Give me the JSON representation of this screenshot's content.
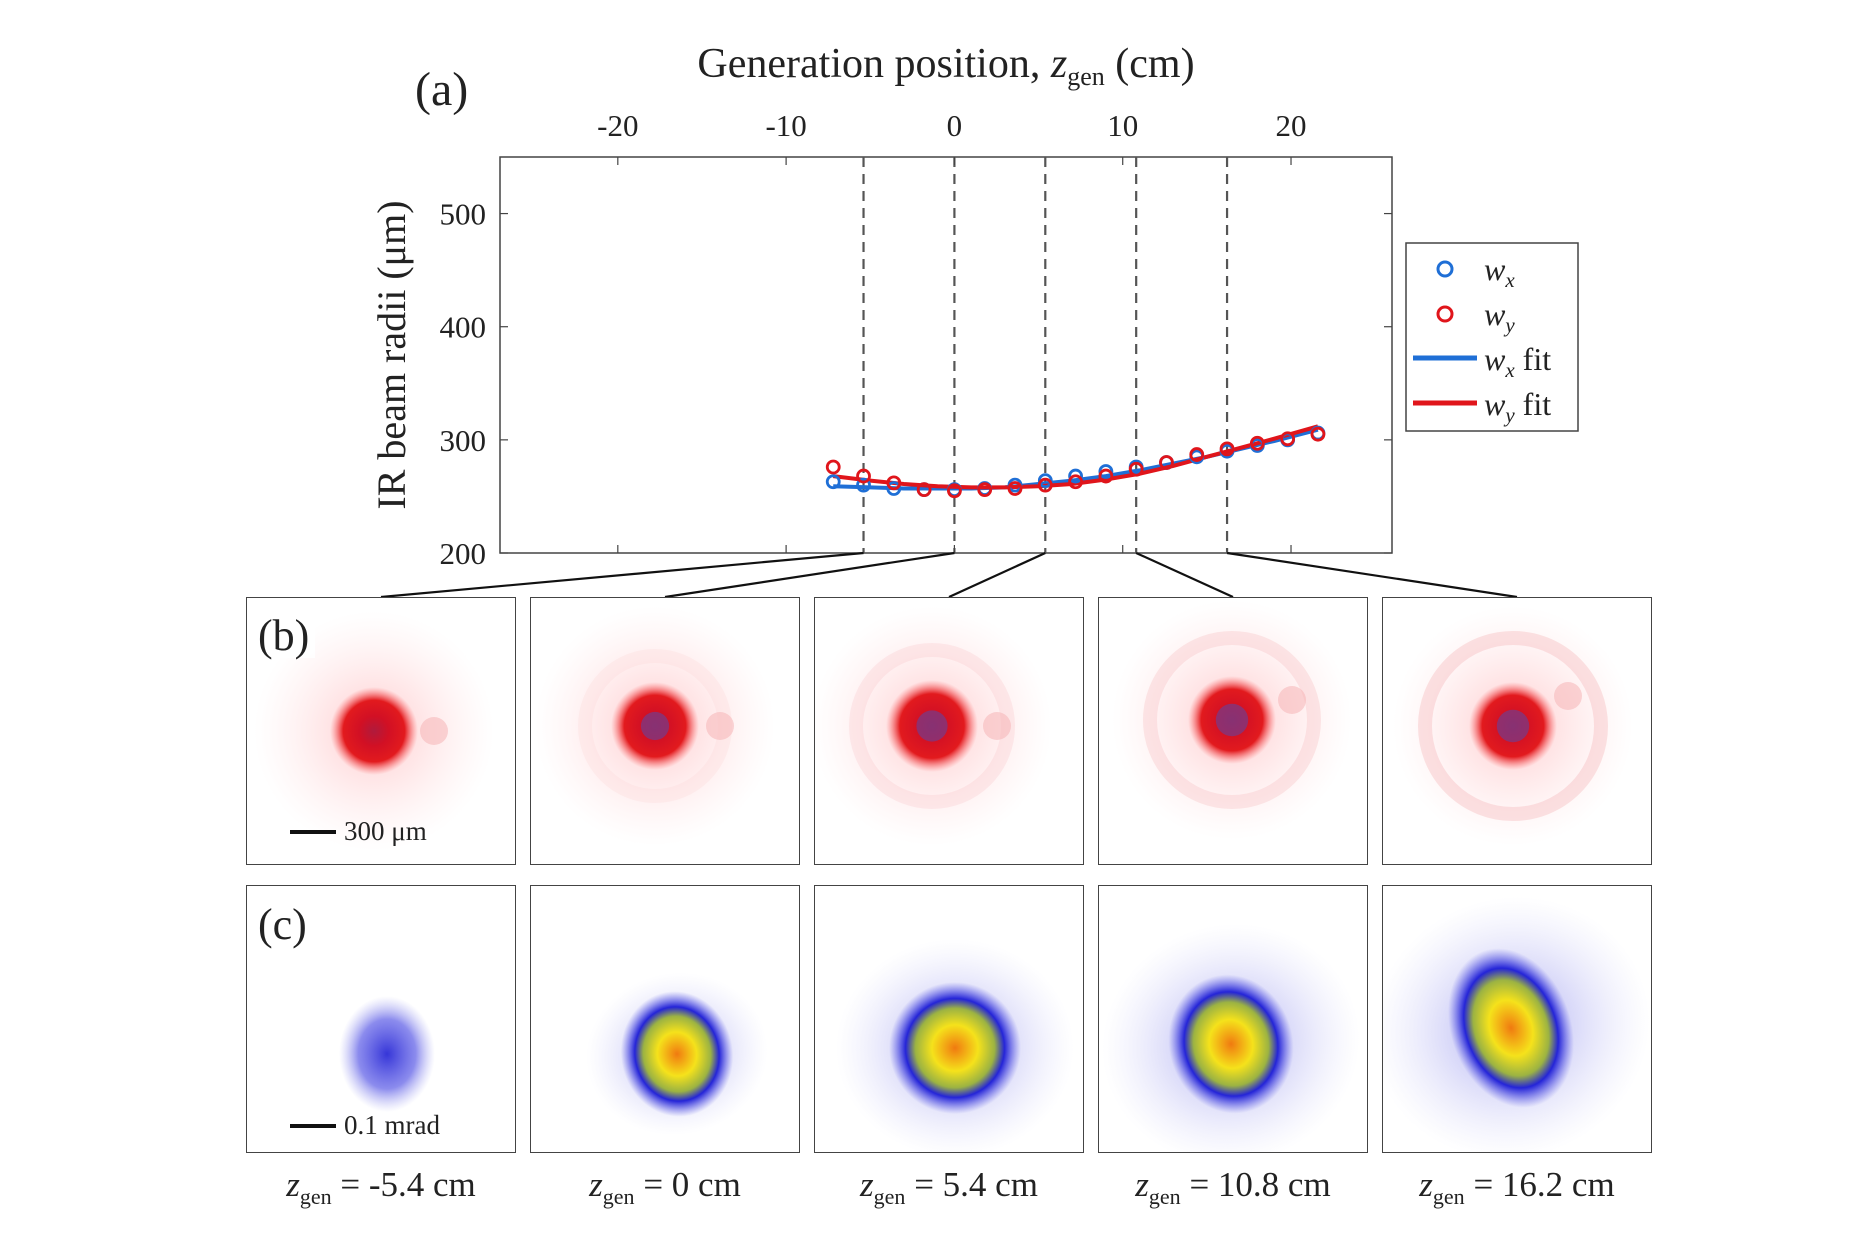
{
  "figure": {
    "panel_a_label": "(a)",
    "panel_b_label": "(b)",
    "panel_c_label": "(c)",
    "top_axis_title_prefix": "Generation position, ",
    "top_axis_title_var": "z",
    "top_axis_title_sub": "gen",
    "top_axis_title_unit": " (cm)",
    "scalebar_b": "300 μm",
    "scalebar_c": "0.1 mrad",
    "z_labels": [
      {
        "var": "z",
        "sub": "gen",
        "text": " = -5.4 cm"
      },
      {
        "var": "z",
        "sub": "gen",
        "text": " = 0 cm"
      },
      {
        "var": "z",
        "sub": "gen",
        "text": " = 5.4 cm"
      },
      {
        "var": "z",
        "sub": "gen",
        "text": " = 10.8 cm"
      },
      {
        "var": "z",
        "sub": "gen",
        "text": " = 16.2 cm"
      }
    ],
    "colors": {
      "wx": "#1f6fd6",
      "wy": "#e0151b",
      "ir_beam": "#e0151b",
      "xuv_outer": "#3a3adf",
      "xuv_core": "#f5e21b",
      "xuv_hot": "#f07a10"
    }
  },
  "chart_data": {
    "type": "scatter",
    "title": "",
    "xlabel": "Generation position, z_gen (cm)",
    "ylabel": "IR beam radii (μm)",
    "xlim": [
      -27,
      26
    ],
    "ylim": [
      200,
      550
    ],
    "x_ticks": [
      -20,
      -10,
      0,
      10,
      20
    ],
    "x_tick_labels": [
      "-20",
      "-10",
      "0",
      "10",
      "20"
    ],
    "y_ticks": [
      200,
      300,
      400,
      500
    ],
    "y_tick_labels": [
      "200",
      "300",
      "400",
      "500"
    ],
    "vertical_markers": [
      -5.4,
      0,
      5.4,
      10.8,
      16.2
    ],
    "legend_position": "outside-right",
    "series": [
      {
        "name": "w_x",
        "legend": "w",
        "legend_sub": "x",
        "kind": "markers",
        "color": "#1f6fd6",
        "x": [
          -7.2,
          -5.4,
          -3.6,
          -1.8,
          0,
          1.8,
          3.6,
          5.4,
          7.2,
          9.0,
          10.8,
          12.6,
          14.4,
          16.2,
          18.0,
          19.8,
          21.6
        ],
        "y": [
          263,
          260,
          257,
          256,
          256,
          257,
          260,
          264,
          268,
          272,
          276,
          280,
          285,
          290,
          295,
          300,
          306
        ]
      },
      {
        "name": "w_y",
        "legend": "w",
        "legend_sub": "y",
        "kind": "markers",
        "color": "#e0151b",
        "x": [
          -7.2,
          -5.4,
          -3.6,
          -1.8,
          0,
          1.8,
          3.6,
          5.4,
          7.2,
          9.0,
          10.8,
          12.6,
          14.4,
          16.2,
          18.0,
          19.8,
          21.6
        ],
        "y": [
          276,
          268,
          262,
          256,
          255,
          256,
          257,
          260,
          263,
          268,
          274,
          280,
          287,
          292,
          297,
          301,
          305
        ]
      },
      {
        "name": "w_x fit",
        "legend": "w",
        "legend_sub": "x",
        "legend_suffix": " fit",
        "kind": "line",
        "color": "#1f6fd6",
        "x": [
          -7.2,
          -5,
          -3,
          -1,
          1,
          3,
          5,
          7,
          9,
          11,
          13,
          15,
          17,
          19,
          21.6
        ],
        "y": [
          259,
          258,
          257,
          257,
          257,
          258,
          261,
          264,
          268,
          273,
          279,
          285,
          292,
          299,
          309
        ]
      },
      {
        "name": "w_y fit",
        "legend": "w",
        "legend_sub": "y",
        "legend_suffix": " fit",
        "kind": "line",
        "color": "#e0151b",
        "x": [
          -7.2,
          -5,
          -3,
          -1,
          1,
          3,
          5,
          7,
          9,
          11,
          13,
          15,
          17,
          19,
          21.6
        ],
        "y": [
          268,
          264,
          261,
          259,
          258,
          258,
          259,
          261,
          265,
          270,
          277,
          285,
          293,
          301,
          312
        ]
      }
    ]
  }
}
